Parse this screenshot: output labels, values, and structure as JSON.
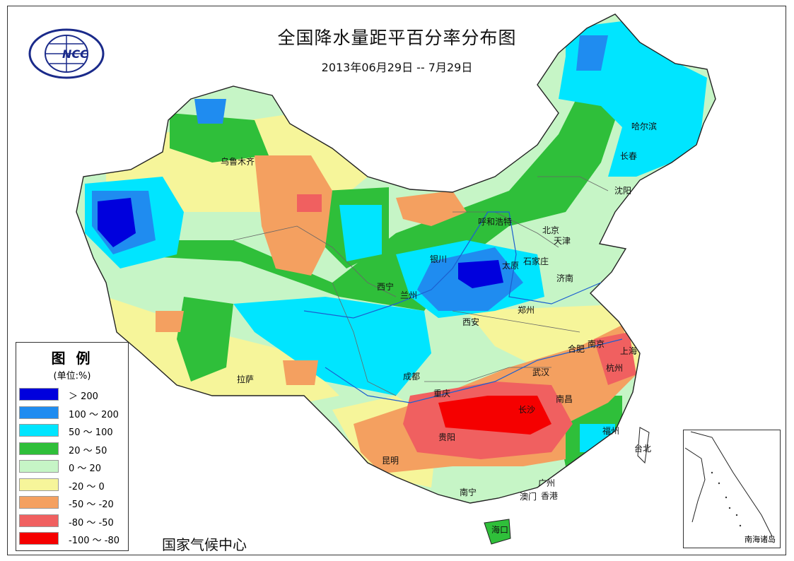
{
  "title": "全国降水量距平百分率分布图",
  "subtitle": "2013年06月29日 -- 7月29日",
  "organization": "国家气候中心",
  "logo_text": "NCC",
  "legend": {
    "title": "图 例",
    "unit": "(单位:%)",
    "items": [
      {
        "label": "＞ 200",
        "color": "#0000dd"
      },
      {
        "label": "100 ～ 200",
        "color": "#1f8cf0"
      },
      {
        "label": "50 ～ 100",
        "color": "#00e5ff"
      },
      {
        "label": "20 ～ 50",
        "color": "#2fbf3a"
      },
      {
        "label": "0 ～ 20",
        "color": "#c6f5c6"
      },
      {
        "label": "-20 ～ 0",
        "color": "#f6f59a"
      },
      {
        "label": "-50 ～ -20",
        "color": "#f4a060"
      },
      {
        "label": "-80 ～ -50",
        "color": "#f06060"
      },
      {
        "label": "-100 ～ -80",
        "color": "#f50000"
      }
    ]
  },
  "inset_label": "南海诸岛",
  "cities": [
    "乌鲁木齐",
    "哈尔滨",
    "长春",
    "沈阳",
    "呼和浩特",
    "北京",
    "天津",
    "石家庄",
    "太原",
    "济南",
    "银川",
    "西宁",
    "兰州",
    "西安",
    "郑州",
    "合肥",
    "南京",
    "上海",
    "杭州",
    "武汉",
    "成都",
    "重庆",
    "长沙",
    "南昌",
    "贵阳",
    "拉萨",
    "昆明",
    "福州",
    "台北",
    "南宁",
    "广州",
    "香港",
    "澳门",
    "海口"
  ]
}
